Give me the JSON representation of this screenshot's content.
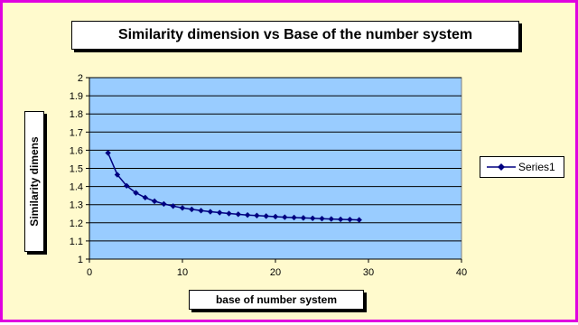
{
  "chart_data": {
    "type": "line",
    "title": "Similarity dimension vs Base of the number system",
    "xlabel": "base of number system",
    "ylabel": "Similarity dimens",
    "xlim": [
      0,
      40
    ],
    "ylim": [
      1,
      2
    ],
    "xticks": [
      0,
      10,
      20,
      30,
      40
    ],
    "yticks": [
      1,
      1.1,
      1.2,
      1.3,
      1.4,
      1.5,
      1.6,
      1.7,
      1.8,
      1.9,
      2
    ],
    "grid": "horizontal",
    "legend_position": "right",
    "series": [
      {
        "name": "Series1",
        "color": "#000080",
        "marker": "diamond",
        "x": [
          2,
          3,
          4,
          5,
          6,
          7,
          8,
          9,
          10,
          11,
          12,
          13,
          14,
          15,
          16,
          17,
          18,
          19,
          20,
          21,
          22,
          23,
          24,
          25,
          26,
          27,
          28,
          29
        ],
        "y": [
          1.585,
          1.465,
          1.404,
          1.365,
          1.339,
          1.319,
          1.304,
          1.292,
          1.282,
          1.274,
          1.267,
          1.261,
          1.256,
          1.251,
          1.247,
          1.243,
          1.24,
          1.237,
          1.234,
          1.231,
          1.229,
          1.227,
          1.225,
          1.223,
          1.221,
          1.219,
          1.218,
          1.216
        ]
      }
    ],
    "colors": {
      "frame_border": "#e000e0",
      "frame_background": "#fffacd",
      "plot_background": "#99ccff",
      "gridline": "#000000"
    }
  }
}
